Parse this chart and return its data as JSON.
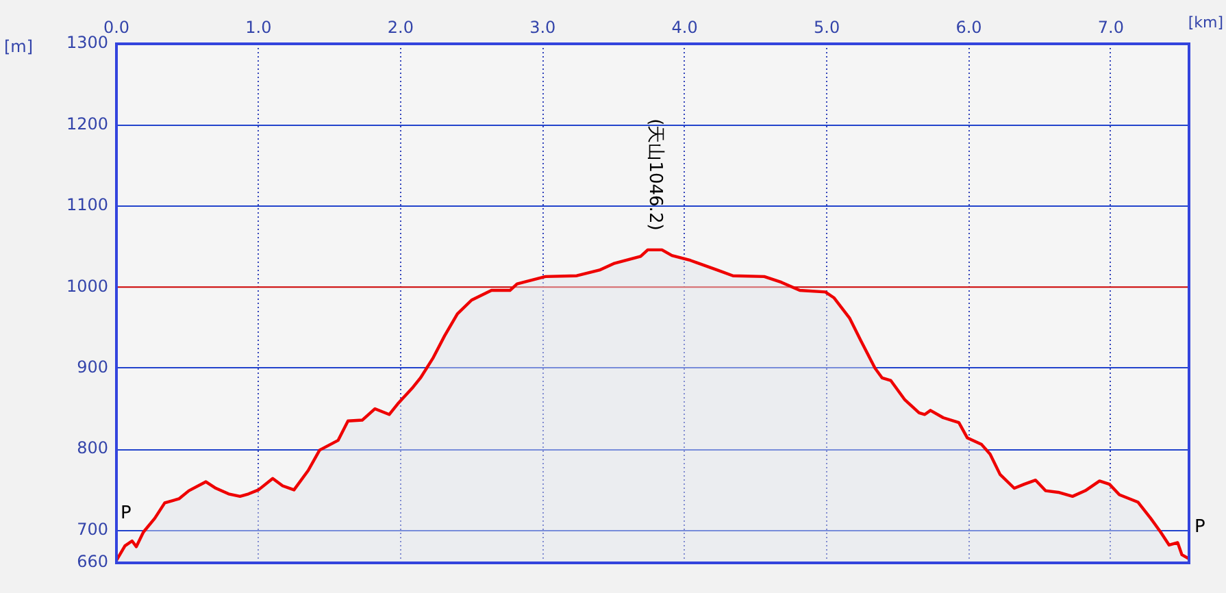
{
  "chart_data": {
    "type": "area",
    "xlabel": "[km]",
    "ylabel": "[m]",
    "xlim": [
      0,
      7.55
    ],
    "ylim": [
      660,
      1300
    ],
    "xticks": [
      {
        "value": 0,
        "label": "0.0"
      },
      {
        "value": 1,
        "label": "1.0"
      },
      {
        "value": 2,
        "label": "2.0"
      },
      {
        "value": 3,
        "label": "3.0"
      },
      {
        "value": 4,
        "label": "4.0"
      },
      {
        "value": 5,
        "label": "5.0"
      },
      {
        "value": 6,
        "label": "6.0"
      },
      {
        "value": 7,
        "label": "7.0"
      }
    ],
    "yticks": [
      660,
      700,
      800,
      900,
      1000,
      1100,
      1200,
      1300
    ],
    "grid": true,
    "legend": false,
    "marker": "none",
    "line_style": "solid",
    "ref_lines": [
      {
        "axis": "y",
        "value": 1000,
        "color": "#cc0000"
      }
    ],
    "annotations": [
      {
        "text": "(天山1046.2)",
        "x": 3.79,
        "y": 1046.2
      },
      "P",
      "P"
    ],
    "series": [
      {
        "color": "#ee0000",
        "x": [
          0,
          0.06,
          0.11,
          0.14,
          0.19,
          0.27,
          0.34,
          0.44,
          0.51,
          0.63,
          0.7,
          0.79,
          0.87,
          0.93,
          1.0,
          1.1,
          1.17,
          1.25,
          1.35,
          1.43,
          1.56,
          1.63,
          1.73,
          1.82,
          1.92,
          1.98,
          2.08,
          2.14,
          2.23,
          2.31,
          2.4,
          2.5,
          2.64,
          2.77,
          2.82,
          3.02,
          3.24,
          3.4,
          3.5,
          3.69,
          3.74,
          3.84,
          3.91,
          4.04,
          4.23,
          4.34,
          4.56,
          4.68,
          4.81,
          4.99,
          5.05,
          5.16,
          5.24,
          5.34,
          5.39,
          5.45,
          5.55,
          5.65,
          5.69,
          5.73,
          5.82,
          5.93,
          5.99,
          6.09,
          6.15,
          6.22,
          6.32,
          6.39,
          6.47,
          6.54,
          6.63,
          6.73,
          6.82,
          6.92,
          6.99,
          7.06,
          7.19,
          7.28,
          7.35,
          7.41,
          7.47,
          7.5,
          7.55
        ],
        "values": [
          663,
          681,
          687,
          680,
          698,
          715,
          734,
          739,
          749,
          760,
          752,
          745,
          742,
          745,
          750,
          764,
          755,
          750,
          774,
          799,
          811,
          835,
          836,
          850,
          843,
          856,
          875,
          888,
          913,
          940,
          967,
          984,
          996,
          996,
          1004,
          1013,
          1014,
          1021,
          1029,
          1038,
          1046,
          1046,
          1039,
          1033,
          1021,
          1014,
          1013,
          1006,
          996,
          994,
          987,
          962,
          934,
          900,
          888,
          885,
          861,
          845,
          843,
          848,
          839,
          833,
          814,
          806,
          794,
          769,
          752,
          757,
          762,
          749,
          747,
          742,
          749,
          761,
          757,
          744,
          735,
          715,
          698,
          682,
          685,
          670,
          665
        ]
      }
    ]
  }
}
